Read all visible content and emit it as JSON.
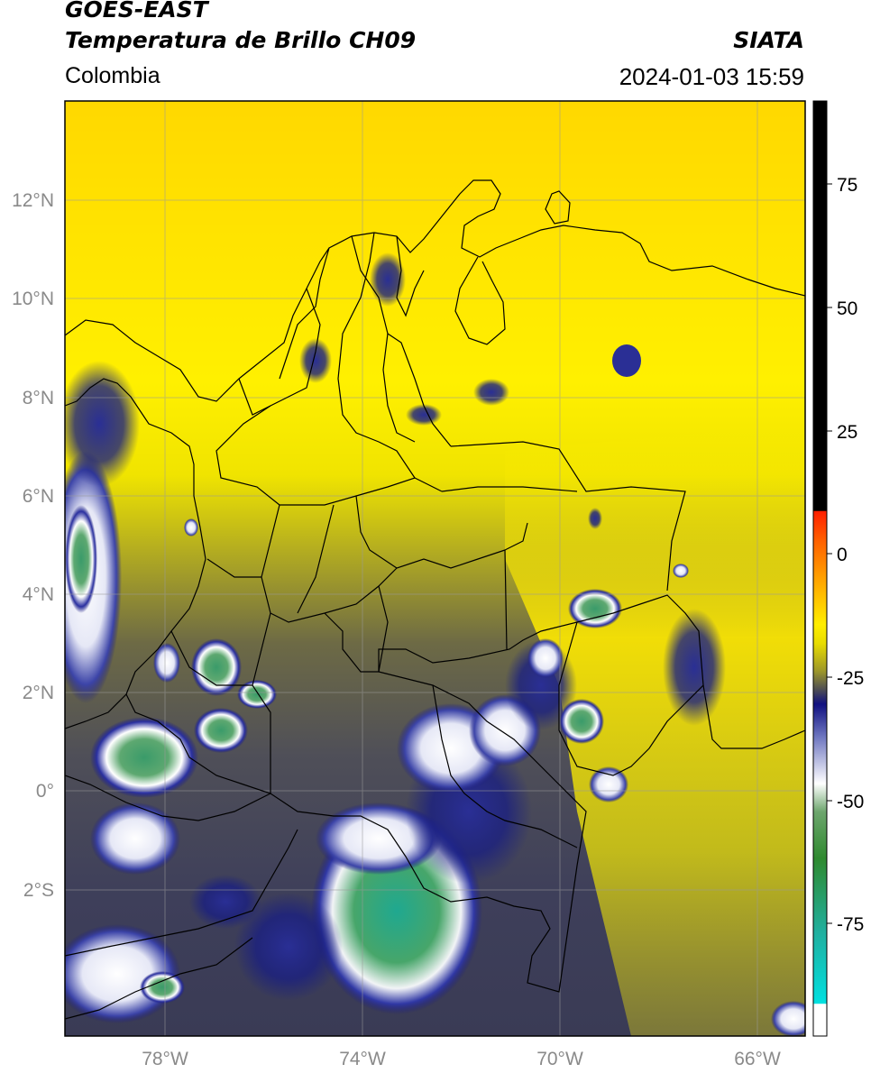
{
  "header": {
    "satellite": "GOES-EAST",
    "product": "Temperatura de Brillo CH09",
    "region": "Colombia",
    "organization": "SIATA",
    "datetime": "2024-01-03 15:59"
  },
  "map": {
    "lat_labels": [
      "12°N",
      "10°N",
      "8°N",
      "6°N",
      "4°N",
      "2°N",
      "0°",
      "2°S"
    ],
    "lon_labels": [
      "78°W",
      "74°W",
      "70°W",
      "66°W"
    ]
  },
  "colorbar": {
    "ticks": [
      "75",
      "50",
      "25",
      "0",
      "-25",
      "-50",
      "-75"
    ],
    "colors": {
      "black": "#000000",
      "red": "#ff2000",
      "orange": "#ff9000",
      "yellow": "#ffee00",
      "olive": "#8a8a30",
      "gray": "#4a4a55",
      "navy": "#101080",
      "white": "#ffffff",
      "green": "#2f8a2f",
      "teal": "#20b0a0",
      "cyan": "#00e0e0"
    }
  }
}
